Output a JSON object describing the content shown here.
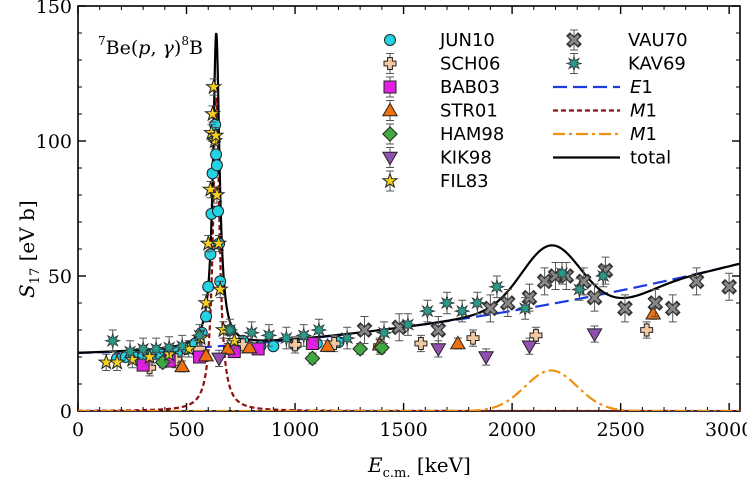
{
  "chart_data": {
    "type": "scatter",
    "annotation": {
      "pre": "7",
      "t1": "Be(",
      "p": "p",
      ", ": ", ",
      "g": "γ",
      "t2": ")",
      "sup2": "8",
      "t3": "B"
    },
    "xlabel": {
      "main": "E",
      "sub": "c.m.",
      "unit": " [keV]"
    },
    "ylabel": {
      "main": "S",
      "sub": "17",
      "unit": " [eV b]"
    },
    "xlim": [
      0,
      3050
    ],
    "ylim": [
      0,
      150
    ],
    "xticks": [
      "0",
      "500",
      "1000",
      "1500",
      "2000",
      "2500",
      "3000"
    ],
    "yticks": [
      "0",
      "50",
      "100",
      "150"
    ],
    "legend_placement": "top-right",
    "series": [
      {
        "name": "JUN10",
        "marker": "circle",
        "color": "#22d3e6",
        "points": [
          [
            180,
            19.5
          ],
          [
            220,
            20
          ],
          [
            260,
            20
          ],
          [
            300,
            20.5
          ],
          [
            340,
            21
          ],
          [
            380,
            21
          ],
          [
            420,
            21.5
          ],
          [
            460,
            22
          ],
          [
            500,
            23
          ],
          [
            540,
            25
          ],
          [
            570,
            29
          ],
          [
            590,
            35
          ],
          [
            600,
            46
          ],
          [
            610,
            58
          ],
          [
            615,
            73
          ],
          [
            620,
            88
          ],
          [
            628,
            101
          ],
          [
            632,
            106
          ],
          [
            636,
            95
          ],
          [
            640,
            91
          ],
          [
            645,
            74
          ],
          [
            650,
            62
          ],
          [
            655,
            48
          ],
          [
            700,
            30
          ],
          [
            760,
            26
          ],
          [
            840,
            24
          ],
          [
            900,
            24
          ],
          [
            1000,
            24.5
          ],
          [
            1100,
            25
          ],
          [
            1200,
            25.5
          ]
        ]
      },
      {
        "name": "SCH06",
        "marker": "cross",
        "color": "#f2c8a0",
        "points": [
          [
            330,
            16
          ],
          [
            450,
            19
          ],
          [
            560,
            23
          ],
          [
            760,
            24.5
          ],
          [
            1000,
            24.5
          ],
          [
            1180,
            25
          ],
          [
            1390,
            24
          ],
          [
            1580,
            25
          ],
          [
            1820,
            27
          ],
          [
            2110,
            28
          ],
          [
            2620,
            30
          ]
        ]
      },
      {
        "name": "BAB03",
        "marker": "square",
        "color": "#e020e0",
        "points": [
          [
            300,
            17
          ],
          [
            420,
            18.5
          ],
          [
            560,
            20
          ],
          [
            720,
            22
          ],
          [
            830,
            23
          ],
          [
            1080,
            25
          ]
        ]
      },
      {
        "name": "STR01",
        "marker": "triangle-up",
        "color": "#f07010",
        "points": [
          [
            480,
            16.5
          ],
          [
            590,
            20.5
          ],
          [
            690,
            23
          ],
          [
            790,
            23.5
          ],
          [
            1150,
            24
          ],
          [
            1390,
            24.5
          ],
          [
            1750,
            25
          ],
          [
            2650,
            36
          ]
        ]
      },
      {
        "name": "HAM98",
        "marker": "diamond",
        "color": "#40a840",
        "points": [
          [
            390,
            18
          ],
          [
            1080,
            19.5
          ],
          [
            1300,
            23
          ],
          [
            1400,
            23.5
          ]
        ]
      },
      {
        "name": "KIK98",
        "marker": "triangle-down",
        "color": "#9050b0",
        "points": [
          [
            650,
            19.5
          ],
          [
            1660,
            23
          ],
          [
            1880,
            20
          ],
          [
            2080,
            24
          ],
          [
            2380,
            28.5
          ]
        ]
      },
      {
        "name": "FIL83",
        "marker": "star",
        "color": "#f5d020",
        "points": [
          [
            130,
            18
          ],
          [
            180,
            18
          ],
          [
            250,
            19
          ],
          [
            330,
            20
          ],
          [
            420,
            21
          ],
          [
            510,
            23
          ],
          [
            565,
            27
          ],
          [
            590,
            40
          ],
          [
            600,
            62
          ],
          [
            610,
            82
          ],
          [
            615,
            103
          ],
          [
            620,
            110
          ],
          [
            625,
            120
          ],
          [
            630,
            100
          ],
          [
            635,
            102
          ],
          [
            640,
            80
          ],
          [
            648,
            62
          ],
          [
            655,
            45
          ],
          [
            670,
            30
          ],
          [
            720,
            26
          ]
        ]
      },
      {
        "name": "VAU70",
        "marker": "x",
        "color": "#888888",
        "points": [
          [
            1320,
            30
          ],
          [
            1480,
            31
          ],
          [
            1660,
            30
          ],
          [
            1900,
            38
          ],
          [
            1980,
            40
          ],
          [
            2080,
            42
          ],
          [
            2150,
            48
          ],
          [
            2200,
            50
          ],
          [
            2250,
            50
          ],
          [
            2330,
            48
          ],
          [
            2380,
            42
          ],
          [
            2430,
            52
          ],
          [
            2520,
            38
          ],
          [
            2660,
            40
          ],
          [
            2740,
            38
          ],
          [
            2850,
            48
          ],
          [
            3000,
            46
          ]
        ]
      },
      {
        "name": "KAV69",
        "marker": "asterisk",
        "color": "#2a9a8a",
        "points": [
          [
            160,
            26
          ],
          [
            240,
            22
          ],
          [
            300,
            23
          ],
          [
            360,
            23
          ],
          [
            420,
            23.5
          ],
          [
            480,
            24
          ],
          [
            560,
            28
          ],
          [
            700,
            30
          ],
          [
            800,
            29
          ],
          [
            880,
            28
          ],
          [
            960,
            27
          ],
          [
            1040,
            28
          ],
          [
            1110,
            30
          ],
          [
            1240,
            27
          ],
          [
            1410,
            29
          ],
          [
            1520,
            32
          ],
          [
            1610,
            37
          ],
          [
            1700,
            40
          ],
          [
            1770,
            37
          ],
          [
            1840,
            40
          ],
          [
            1930,
            46
          ],
          [
            2060,
            38
          ],
          [
            2230,
            51
          ],
          [
            2310,
            45
          ],
          [
            2420,
            50
          ]
        ]
      }
    ],
    "lines": [
      {
        "name": "E1",
        "style": "dashed",
        "color": "#1a3be0"
      },
      {
        "name": "M1",
        "style": "dotted",
        "color": "#8b1010"
      },
      {
        "name": "M1",
        "style": "dashdot",
        "color": "#f09010"
      },
      {
        "name": "total",
        "style": "solid",
        "color": "#000000"
      }
    ]
  }
}
